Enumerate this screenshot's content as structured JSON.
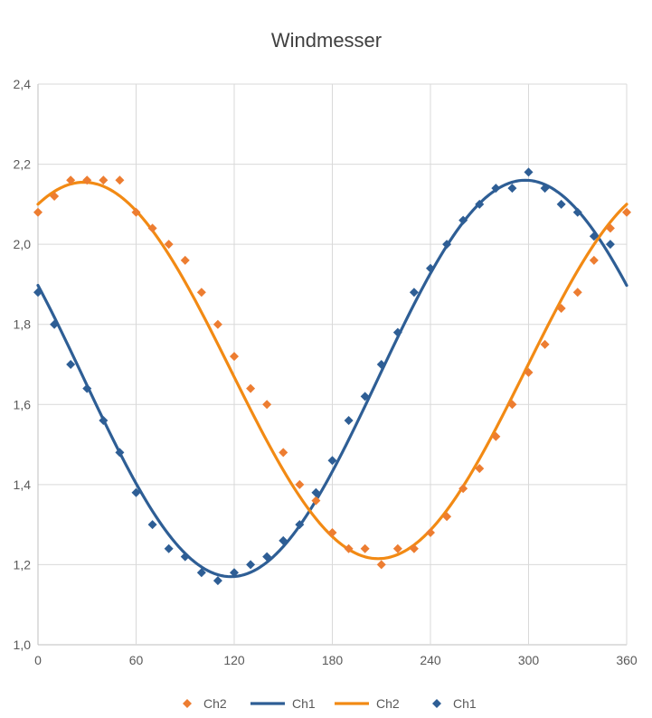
{
  "chart_data": {
    "type": "scatter",
    "title": "Windmesser",
    "xlabel": "",
    "ylabel": "",
    "xlim": [
      0,
      360
    ],
    "ylim": [
      1.0,
      2.4
    ],
    "x_ticks": [
      "0",
      "60",
      "120",
      "180",
      "240",
      "300",
      "360"
    ],
    "y_ticks": [
      "1,0",
      "1,2",
      "1,4",
      "1,6",
      "1,8",
      "2,0",
      "2,2",
      "2,4"
    ],
    "grid": true,
    "legend_position": "bottom",
    "legend": [
      {
        "label": "Ch2",
        "kind": "marker",
        "color": "#ED7D31"
      },
      {
        "label": "Ch1",
        "kind": "line",
        "color": "#2E5E95"
      },
      {
        "label": "Ch2",
        "kind": "line",
        "color": "#F28A14"
      },
      {
        "label": "Ch1",
        "kind": "marker",
        "color": "#2E5E95"
      }
    ],
    "series": [
      {
        "name": "Ch2",
        "kind": "markers",
        "color": "#ED7D31",
        "x": [
          0,
          10,
          20,
          30,
          40,
          50,
          60,
          70,
          80,
          90,
          100,
          110,
          120,
          130,
          140,
          150,
          160,
          170,
          180,
          190,
          200,
          210,
          220,
          230,
          240,
          250,
          260,
          270,
          280,
          290,
          300,
          310,
          320,
          330,
          340,
          350,
          360
        ],
        "y": [
          2.08,
          2.12,
          2.16,
          2.16,
          2.16,
          2.16,
          2.08,
          2.04,
          2.0,
          1.96,
          1.88,
          1.8,
          1.72,
          1.64,
          1.6,
          1.48,
          1.4,
          1.36,
          1.28,
          1.24,
          1.24,
          1.2,
          1.24,
          1.24,
          1.28,
          1.32,
          1.39,
          1.44,
          1.52,
          1.6,
          1.68,
          1.75,
          1.84,
          1.88,
          1.96,
          2.04,
          2.08
        ]
      },
      {
        "name": "Ch1",
        "kind": "markers",
        "color": "#2E5E95",
        "x": [
          0,
          10,
          20,
          30,
          40,
          50,
          60,
          70,
          80,
          90,
          100,
          110,
          120,
          130,
          140,
          150,
          160,
          170,
          180,
          190,
          200,
          210,
          220,
          230,
          240,
          250,
          260,
          270,
          280,
          290,
          300,
          310,
          320,
          330,
          340,
          350
        ],
        "y": [
          1.88,
          1.8,
          1.7,
          1.64,
          1.56,
          1.48,
          1.38,
          1.3,
          1.24,
          1.22,
          1.18,
          1.16,
          1.18,
          1.2,
          1.22,
          1.26,
          1.3,
          1.38,
          1.46,
          1.56,
          1.62,
          1.7,
          1.78,
          1.88,
          1.94,
          2.0,
          2.06,
          2.1,
          2.14,
          2.14,
          2.18,
          2.14,
          2.1,
          2.08,
          2.02,
          2.0
        ]
      },
      {
        "name": "Ch1",
        "kind": "trendline",
        "color": "#2E5E95",
        "amplitude": 0.495,
        "offset": 1.665,
        "peak_x": 298,
        "x_range": [
          0,
          360
        ]
      },
      {
        "name": "Ch2",
        "kind": "trendline",
        "color": "#F28A14",
        "amplitude": 0.47,
        "offset": 1.685,
        "peak_x": 28,
        "x_range": [
          0,
          360
        ]
      }
    ]
  }
}
